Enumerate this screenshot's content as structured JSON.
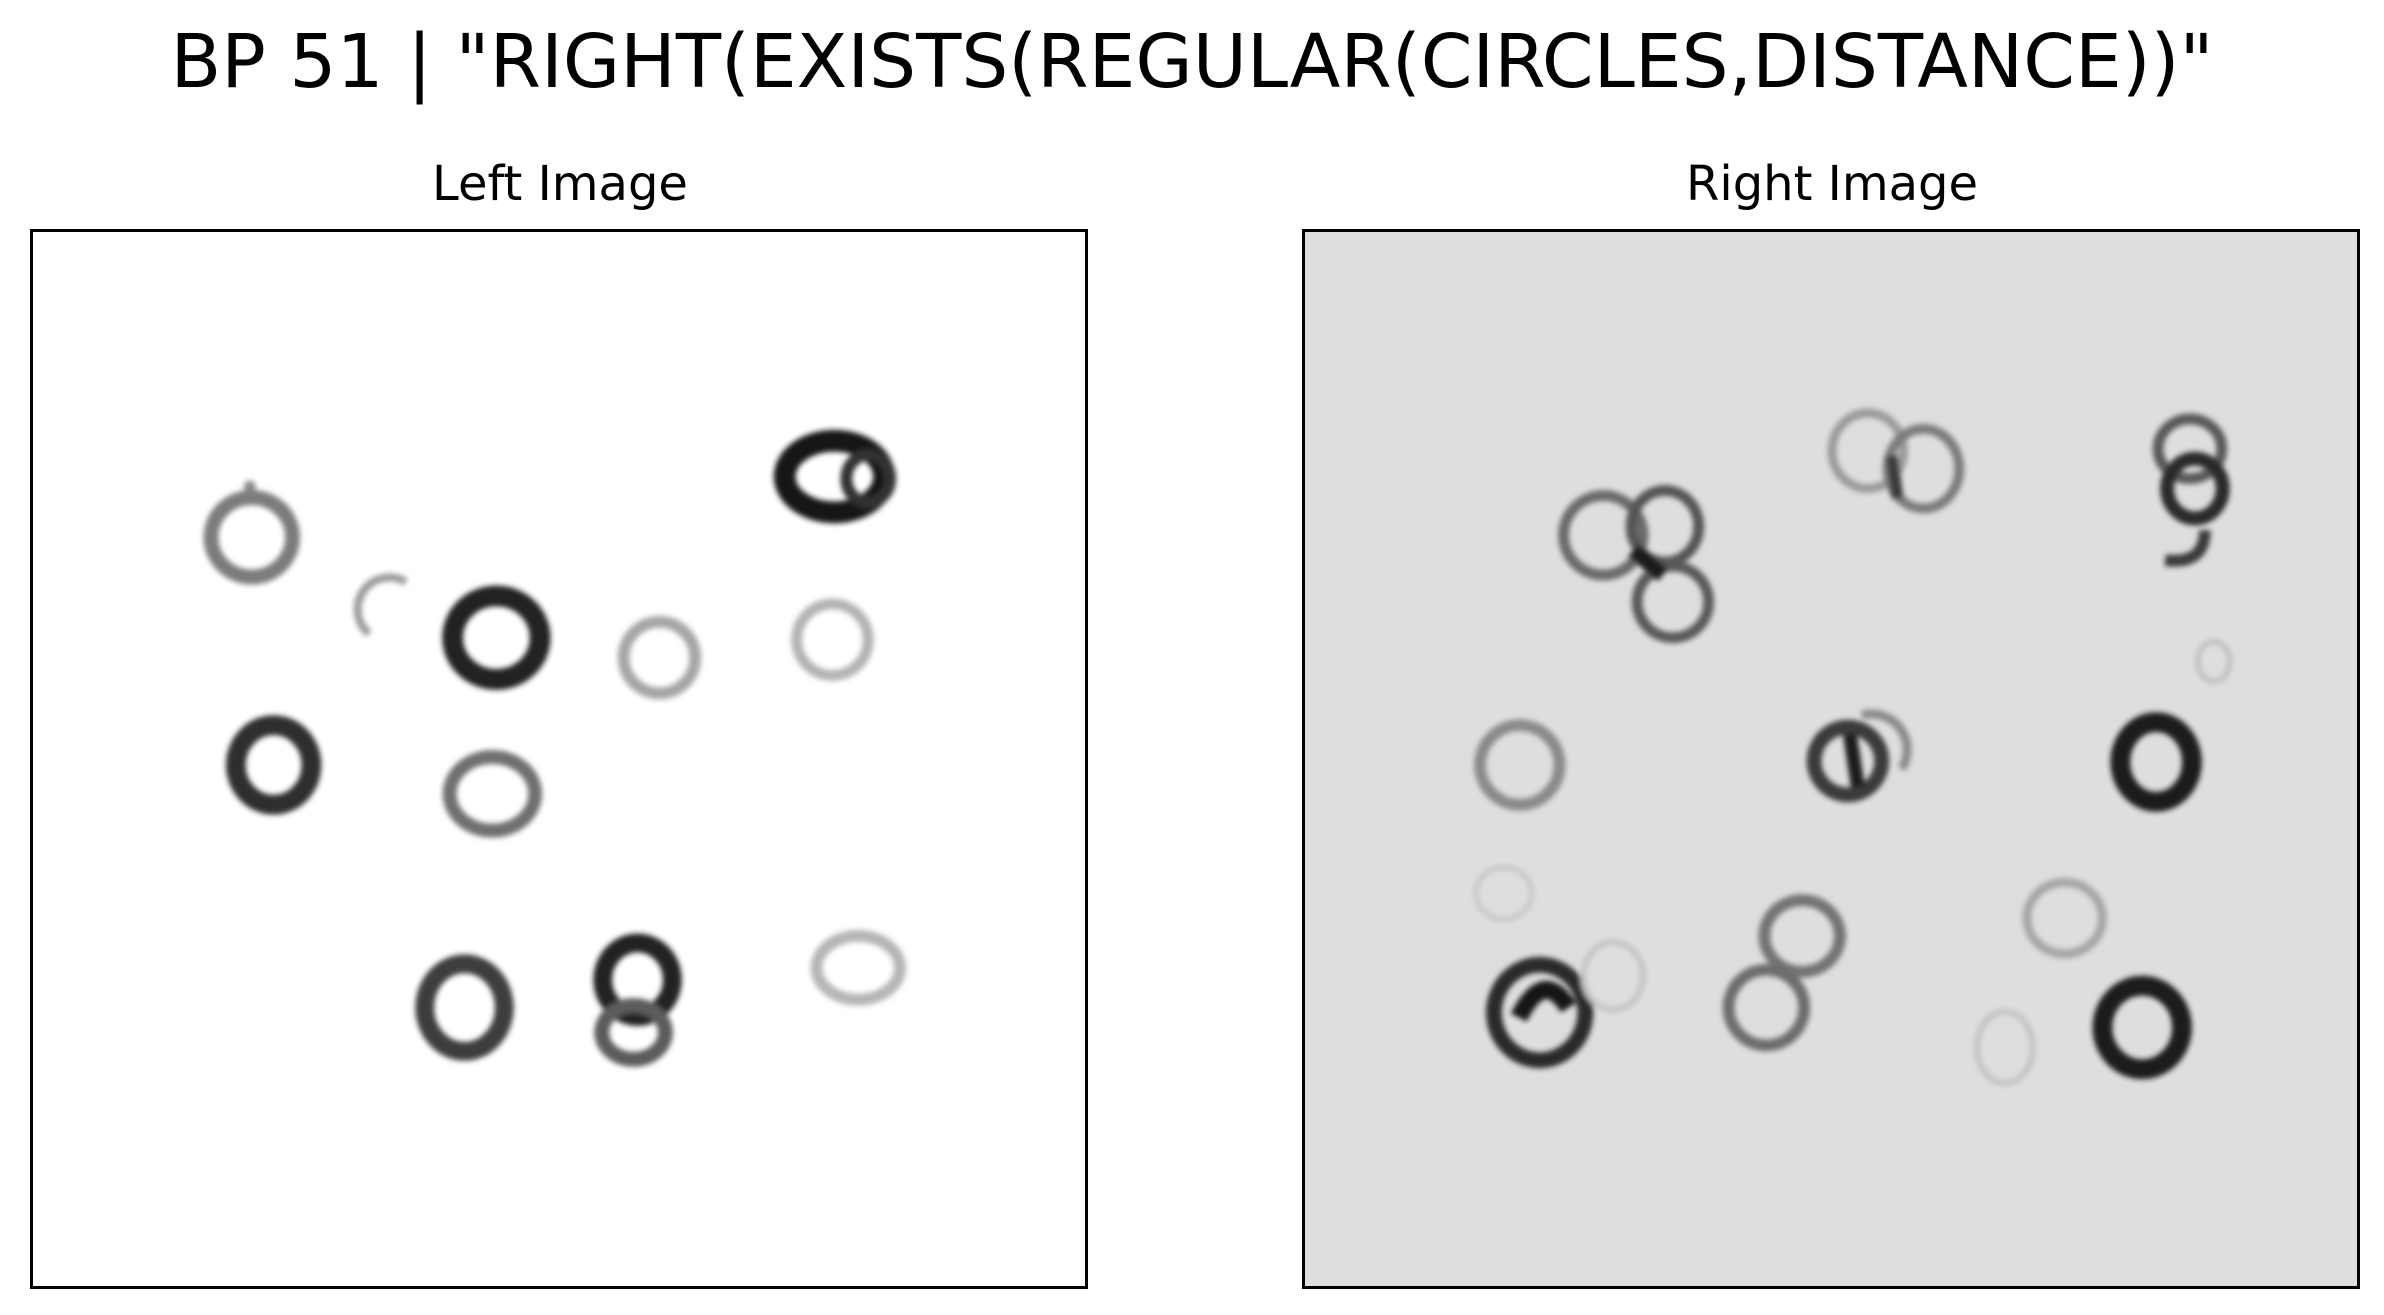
{
  "figure": {
    "title": "BP 51 | \"RIGHT(EXISTS(REGULAR(CIRCLES,DISTANCE))\""
  },
  "panels": [
    {
      "title": "Left Image",
      "background": "#ffffff"
    },
    {
      "title": "Right Image",
      "background": "#dedede"
    }
  ]
}
